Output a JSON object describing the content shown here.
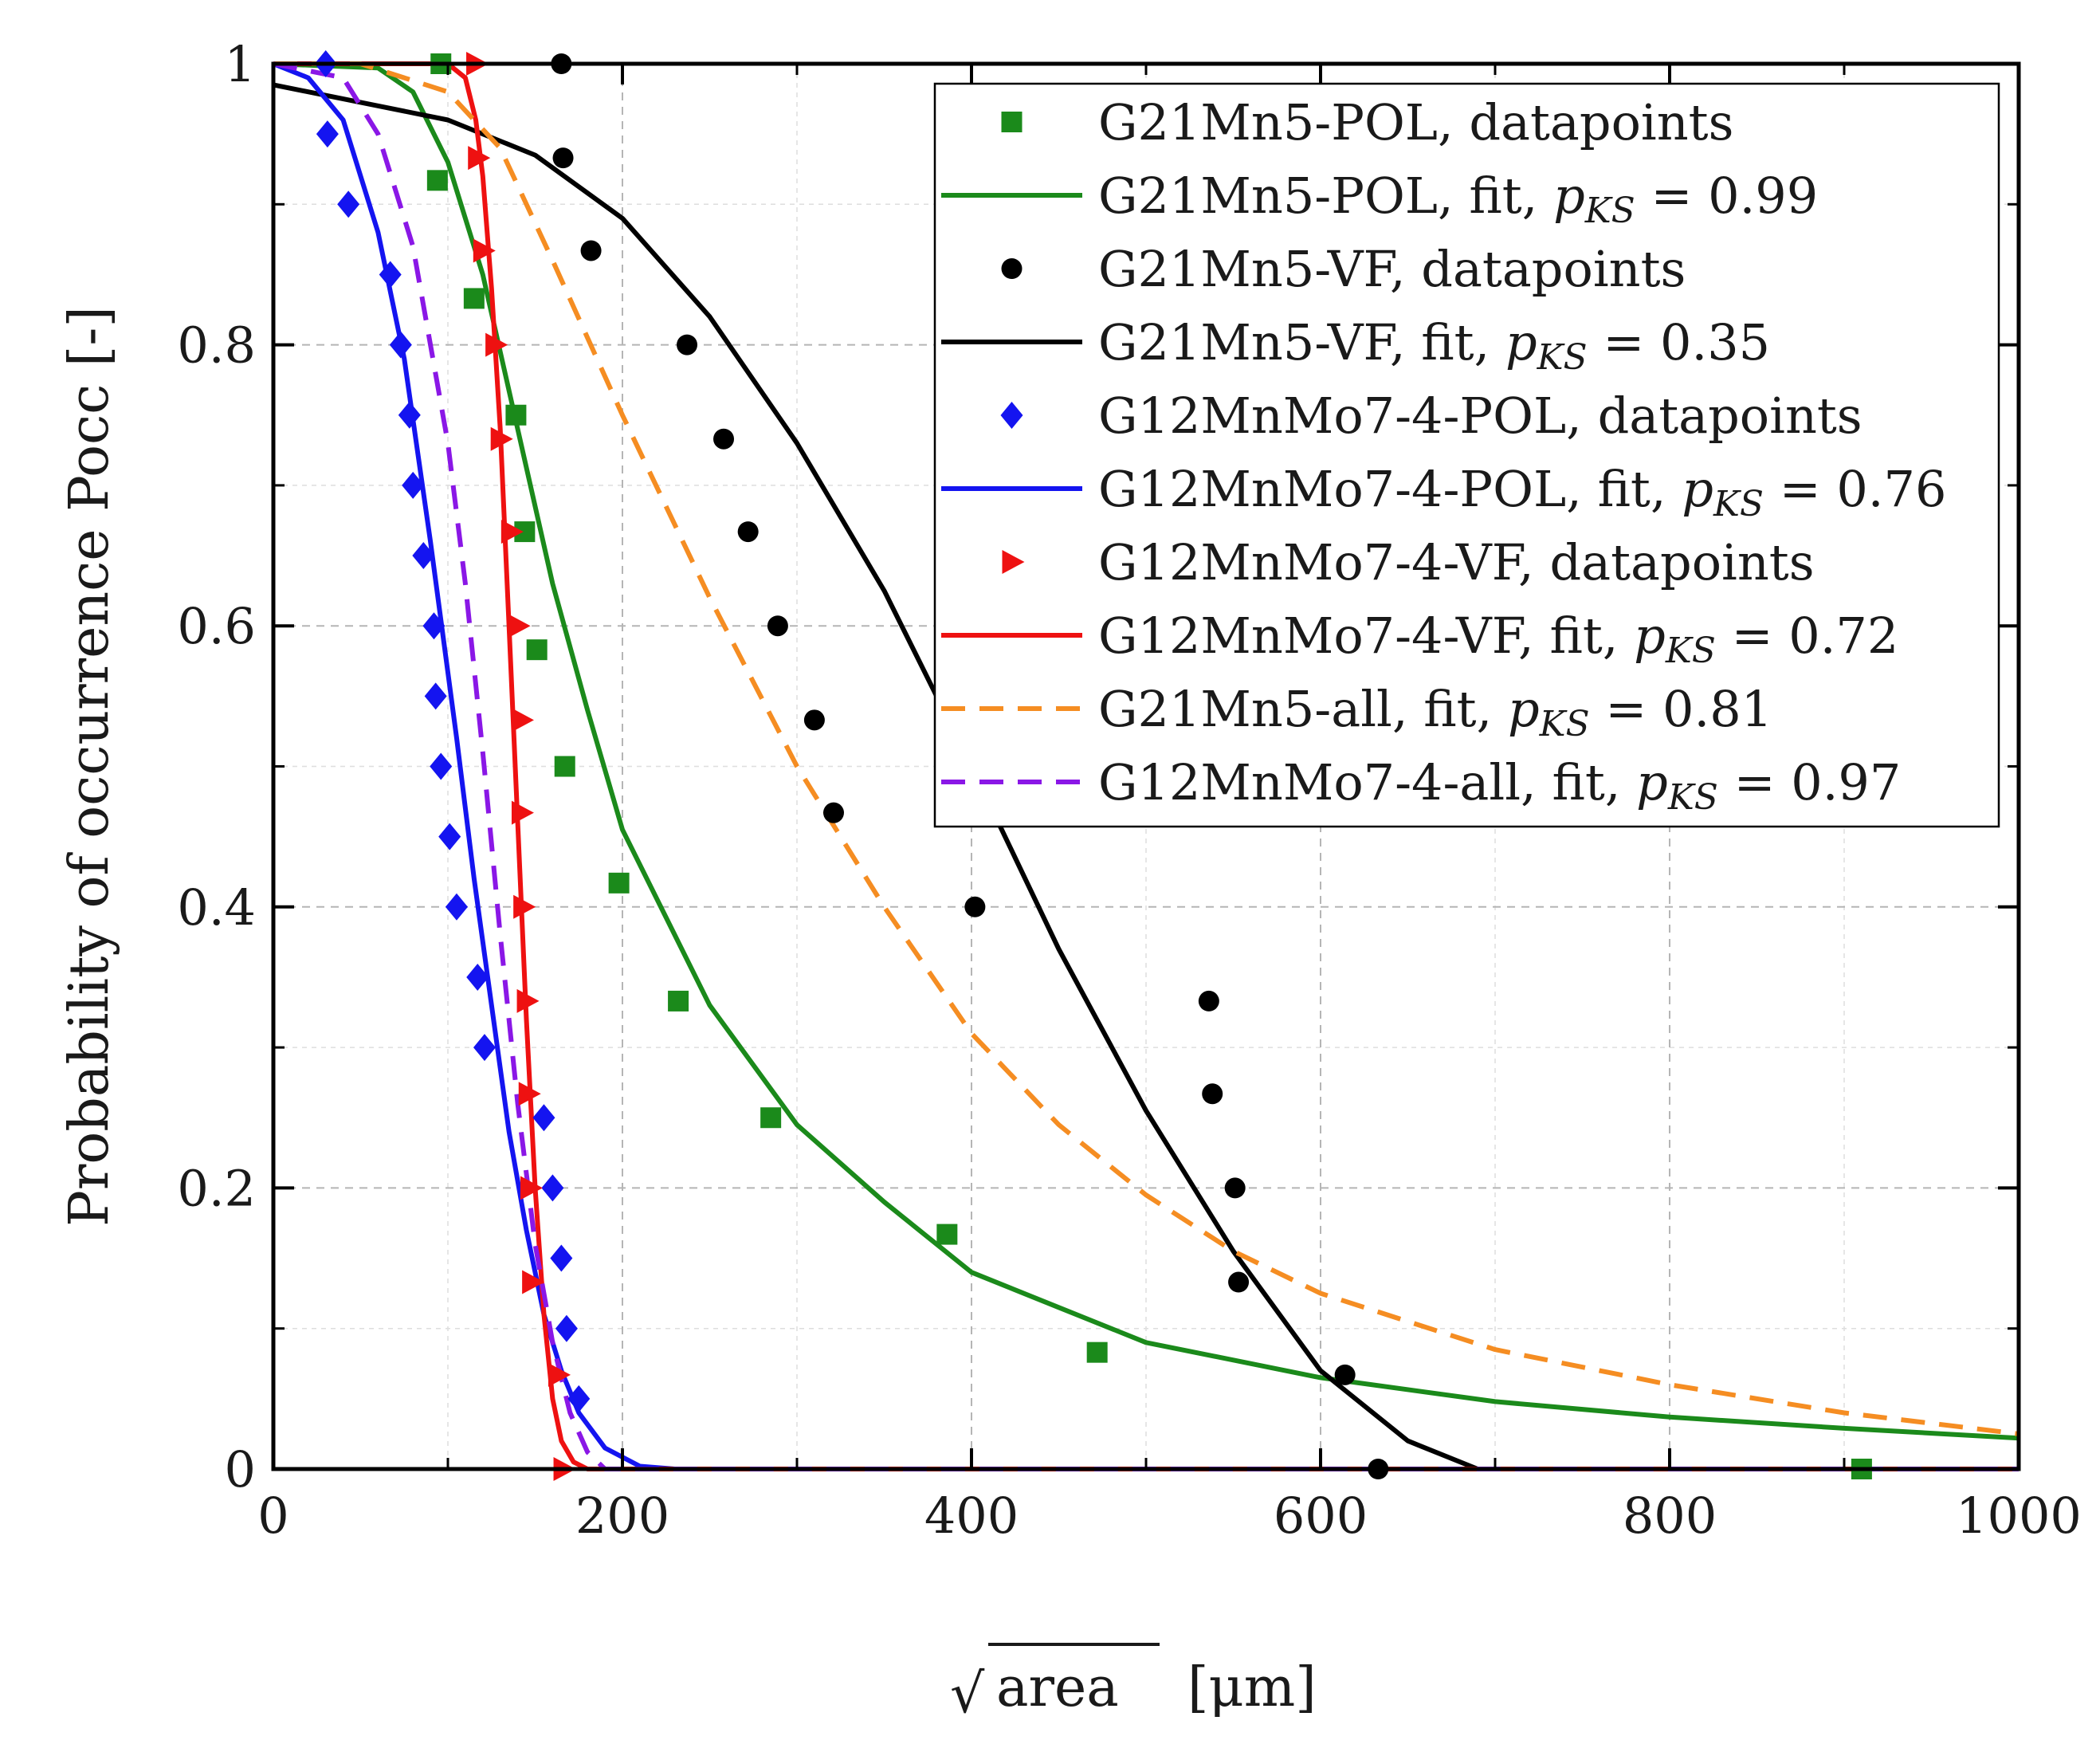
{
  "chart_data": {
    "type": "scatter",
    "title": "",
    "xlabel": "√area [μm]",
    "xlabel_parts": {
      "radicand": "area",
      "unit": "[μm]"
    },
    "ylabel": "Probability of occurrence Pocc [-]",
    "xlim": [
      0,
      1000
    ],
    "ylim": [
      0,
      1
    ],
    "x_ticks": [
      0,
      200,
      400,
      600,
      800,
      1000
    ],
    "x_tick_labels": [
      "0",
      "200",
      "400",
      "600",
      "800",
      "1000"
    ],
    "y_ticks": [
      0,
      0.2,
      0.4,
      0.6,
      0.8,
      1
    ],
    "y_tick_labels": [
      "0",
      "0.2",
      "0.4",
      "0.6",
      "0.8",
      "1"
    ],
    "grid": true,
    "legend_position": "top-right",
    "series": [
      {
        "name": "G21Mn5-POL, datapoints",
        "label_main": "G21Mn5-POL, datapoints",
        "label_p": "",
        "kind": "markers",
        "marker": "square",
        "color": "#1b8a1b",
        "points": [
          [
            96,
            1.0
          ],
          [
            94,
            0.917
          ],
          [
            115,
            0.833
          ],
          [
            139,
            0.75
          ],
          [
            144,
            0.667
          ],
          [
            151,
            0.583
          ],
          [
            167,
            0.5
          ],
          [
            198,
            0.417
          ],
          [
            232,
            0.333
          ],
          [
            285,
            0.25
          ],
          [
            386,
            0.167
          ],
          [
            472,
            0.083
          ],
          [
            910,
            0.0
          ]
        ]
      },
      {
        "name": "G21Mn5-POL, fit",
        "label_main": "G21Mn5-POL, fit, ",
        "label_p": "= 0.99",
        "kind": "line",
        "dash": "",
        "color": "#1b8a1b",
        "points": [
          [
            0,
            1.0
          ],
          [
            60,
            0.997
          ],
          [
            80,
            0.98
          ],
          [
            100,
            0.93
          ],
          [
            120,
            0.85
          ],
          [
            140,
            0.74
          ],
          [
            160,
            0.63
          ],
          [
            180,
            0.54
          ],
          [
            200,
            0.455
          ],
          [
            250,
            0.33
          ],
          [
            300,
            0.245
          ],
          [
            350,
            0.19
          ],
          [
            400,
            0.14
          ],
          [
            450,
            0.115
          ],
          [
            500,
            0.09
          ],
          [
            600,
            0.065
          ],
          [
            700,
            0.048
          ],
          [
            800,
            0.037
          ],
          [
            900,
            0.029
          ],
          [
            1000,
            0.022
          ]
        ]
      },
      {
        "name": "G21Mn5-VF, datapoints",
        "label_main": "G21Mn5-VF, datapoints",
        "label_p": "",
        "kind": "markers",
        "marker": "circle",
        "color": "#000000",
        "points": [
          [
            165,
            1.0
          ],
          [
            166,
            0.933
          ],
          [
            182,
            0.867
          ],
          [
            237,
            0.8
          ],
          [
            258,
            0.733
          ],
          [
            272,
            0.667
          ],
          [
            289,
            0.6
          ],
          [
            310,
            0.533
          ],
          [
            321,
            0.467
          ],
          [
            402,
            0.4
          ],
          [
            536,
            0.333
          ],
          [
            538,
            0.267
          ],
          [
            551,
            0.2
          ],
          [
            553,
            0.133
          ],
          [
            614,
            0.067
          ],
          [
            633,
            0.0
          ]
        ]
      },
      {
        "name": "G21Mn5-VF, fit",
        "label_main": "G21Mn5-VF, fit, ",
        "label_p": "= 0.35",
        "kind": "line",
        "dash": "",
        "color": "#000000",
        "points": [
          [
            0,
            0.985
          ],
          [
            100,
            0.96
          ],
          [
            150,
            0.935
          ],
          [
            200,
            0.89
          ],
          [
            250,
            0.82
          ],
          [
            300,
            0.73
          ],
          [
            350,
            0.625
          ],
          [
            400,
            0.5
          ],
          [
            450,
            0.37
          ],
          [
            500,
            0.255
          ],
          [
            550,
            0.155
          ],
          [
            600,
            0.07
          ],
          [
            650,
            0.02
          ],
          [
            690,
            0.0
          ],
          [
            1000,
            0.0
          ]
        ]
      },
      {
        "name": "G12MnMo7-4-POL, datapoints",
        "label_main": "G12MnMo7-4-POL, datapoints",
        "label_p": "",
        "kind": "markers",
        "marker": "diamond",
        "color": "#1414f0",
        "points": [
          [
            30,
            1.0
          ],
          [
            31,
            0.95
          ],
          [
            43,
            0.9
          ],
          [
            67,
            0.85
          ],
          [
            73,
            0.8
          ],
          [
            78,
            0.75
          ],
          [
            80,
            0.7
          ],
          [
            86,
            0.65
          ],
          [
            92,
            0.6
          ],
          [
            93,
            0.55
          ],
          [
            96,
            0.5
          ],
          [
            101,
            0.45
          ],
          [
            105,
            0.4
          ],
          [
            117,
            0.35
          ],
          [
            121,
            0.3
          ],
          [
            155,
            0.25
          ],
          [
            160,
            0.2
          ],
          [
            165,
            0.15
          ],
          [
            168,
            0.1
          ],
          [
            175,
            0.05
          ]
        ]
      },
      {
        "name": "G12MnMo7-4-POL, fit",
        "label_main": "G12MnMo7-4-POL, fit, ",
        "label_p": "= 0.76",
        "kind": "line",
        "dash": "",
        "color": "#1414f0",
        "points": [
          [
            0,
            1.0
          ],
          [
            20,
            0.99
          ],
          [
            40,
            0.96
          ],
          [
            60,
            0.88
          ],
          [
            75,
            0.79
          ],
          [
            90,
            0.66
          ],
          [
            105,
            0.52
          ],
          [
            115,
            0.42
          ],
          [
            125,
            0.33
          ],
          [
            135,
            0.24
          ],
          [
            145,
            0.17
          ],
          [
            155,
            0.11
          ],
          [
            165,
            0.07
          ],
          [
            175,
            0.04
          ],
          [
            190,
            0.015
          ],
          [
            210,
            0.002
          ],
          [
            230,
            0.0
          ],
          [
            1000,
            0.0
          ]
        ]
      },
      {
        "name": "G12MnMo7-4-VF, datapoints",
        "label_main": "G12MnMo7-4-VF, datapoints",
        "label_p": "",
        "kind": "markers",
        "marker": "triangle-right",
        "color": "#ee1111",
        "points": [
          [
            116,
            1.0
          ],
          [
            117,
            0.933
          ],
          [
            120,
            0.867
          ],
          [
            127,
            0.8
          ],
          [
            130,
            0.733
          ],
          [
            136,
            0.667
          ],
          [
            140,
            0.6
          ],
          [
            142,
            0.533
          ],
          [
            142,
            0.467
          ],
          [
            143,
            0.4
          ],
          [
            145,
            0.333
          ],
          [
            146,
            0.267
          ],
          [
            147,
            0.2
          ],
          [
            148,
            0.133
          ],
          [
            163,
            0.067
          ],
          [
            166,
            0.0
          ]
        ]
      },
      {
        "name": "G12MnMo7-4-VF, fit",
        "label_main": "G12MnMo7-4-VF, fit, ",
        "label_p": "= 0.72",
        "kind": "line",
        "dash": "",
        "color": "#ee1111",
        "points": [
          [
            0,
            1.0
          ],
          [
            100,
            1.0
          ],
          [
            110,
            0.99
          ],
          [
            116,
            0.96
          ],
          [
            120,
            0.92
          ],
          [
            125,
            0.84
          ],
          [
            130,
            0.74
          ],
          [
            135,
            0.6
          ],
          [
            140,
            0.46
          ],
          [
            145,
            0.32
          ],
          [
            150,
            0.2
          ],
          [
            155,
            0.11
          ],
          [
            160,
            0.05
          ],
          [
            165,
            0.02
          ],
          [
            172,
            0.005
          ],
          [
            180,
            0.0
          ],
          [
            1000,
            0.0
          ]
        ]
      },
      {
        "name": "G21Mn5-all, fit",
        "label_main": "G21Mn5-all, fit, ",
        "label_p": "= 0.81",
        "kind": "line",
        "dash": "dashed",
        "color": "#f58d22",
        "points": [
          [
            0,
            1.0
          ],
          [
            50,
            1.0
          ],
          [
            100,
            0.98
          ],
          [
            130,
            0.94
          ],
          [
            160,
            0.86
          ],
          [
            200,
            0.75
          ],
          [
            250,
            0.62
          ],
          [
            300,
            0.5
          ],
          [
            350,
            0.4
          ],
          [
            400,
            0.31
          ],
          [
            450,
            0.245
          ],
          [
            500,
            0.195
          ],
          [
            550,
            0.155
          ],
          [
            600,
            0.125
          ],
          [
            700,
            0.085
          ],
          [
            800,
            0.06
          ],
          [
            900,
            0.04
          ],
          [
            1000,
            0.025
          ]
        ]
      },
      {
        "name": "G12MnMo7-4-all, fit",
        "label_main": "G12MnMo7-4-all, fit, ",
        "label_p": "= 0.97",
        "kind": "line",
        "dash": "dashed",
        "color": "#8a17e6",
        "points": [
          [
            0,
            1.0
          ],
          [
            40,
            0.99
          ],
          [
            60,
            0.95
          ],
          [
            80,
            0.87
          ],
          [
            100,
            0.73
          ],
          [
            110,
            0.63
          ],
          [
            120,
            0.51
          ],
          [
            130,
            0.38
          ],
          [
            140,
            0.26
          ],
          [
            150,
            0.16
          ],
          [
            160,
            0.09
          ],
          [
            170,
            0.04
          ],
          [
            180,
            0.012
          ],
          [
            190,
            0.0
          ],
          [
            1000,
            0.0
          ]
        ]
      }
    ]
  }
}
